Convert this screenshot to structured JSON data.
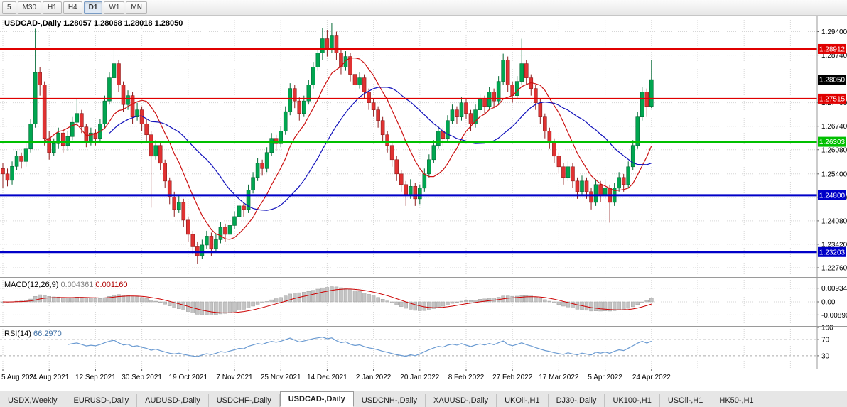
{
  "toolbar": {
    "timeframes": [
      "5",
      "M30",
      "H1",
      "H4",
      "D1",
      "W1",
      "MN"
    ],
    "active": "D1"
  },
  "tabs": {
    "items": [
      "USDX,Weekly",
      "EURUSD-,Daily",
      "AUDUSD-,Daily",
      "USDCHF-,Daily",
      "USDCAD-,Daily",
      "USDCNH-,Daily",
      "XAUUSD-,Daily",
      "UKOil-,H1",
      "DJ30-,Daily",
      "UK100-,H1",
      "USOil-,H1",
      "HK50-,H1"
    ],
    "active": "USDCAD-,Daily"
  },
  "chart_data": {
    "type": "candlestick",
    "title": "USDCAD-,Daily",
    "quote": {
      "open": "1.28057",
      "high": "1.28068",
      "low": "1.28018",
      "close": "1.28050"
    },
    "bid": "1.28050",
    "price_range": [
      1.225,
      1.2985
    ],
    "y_ticks": [
      "1.29400",
      "1.28740",
      "1.27400",
      "1.26740",
      "1.26080",
      "1.25400",
      "1.24740",
      "1.24080",
      "1.23420",
      "1.22760"
    ],
    "x_labels": [
      "5 Aug 2021",
      "24 Aug 2021",
      "12 Sep 2021",
      "30 Sep 2021",
      "19 Oct 2021",
      "7 Nov 2021",
      "25 Nov 2021",
      "14 Dec 2021",
      "2 Jan 2022",
      "20 Jan 2022",
      "8 Feb 2022",
      "27 Feb 2022",
      "17 Mar 2022",
      "5 Apr 2022",
      "24 Apr 2022"
    ],
    "levels": [
      {
        "value": 1.28912,
        "label": "1.28912",
        "color": "#e00000",
        "width": 2
      },
      {
        "value": 1.27515,
        "label": "1.27515",
        "color": "#e00000",
        "width": 2
      },
      {
        "value": 1.26303,
        "label": "1.26303",
        "color": "#00c000",
        "width": 3
      },
      {
        "value": 1.248,
        "label": "1.24800",
        "color": "#0000c8",
        "width": 3
      },
      {
        "value": 1.23203,
        "label": "1.23203",
        "color": "#0000c8",
        "width": 3
      }
    ],
    "moving_averages": [
      {
        "period": 10,
        "color": "#cc1111"
      },
      {
        "period": 24,
        "color": "#1111bb"
      }
    ],
    "indicators": {
      "macd": {
        "label": "MACD(12,26,9)",
        "main_value": "0.004361",
        "signal_value": "0.001160",
        "axis": [
          "0.009345",
          "0.00",
          "-0.008901"
        ],
        "range": [
          -0.016,
          0.016
        ]
      },
      "rsi": {
        "label": "RSI(14)",
        "value": "66.2970",
        "axis": [
          "100",
          "70",
          "30"
        ],
        "level_lines": [
          70,
          30
        ]
      }
    },
    "colors": {
      "up": "#00a650",
      "up_stroke": "#046a35",
      "down": "#e03232",
      "down_stroke": "#8e1c1c",
      "grid": "#d6d6d6",
      "macd_hist": "#c4c4c4",
      "macd_hist_stroke": "#9e9e9e",
      "macd_signal": "#cc0000",
      "rsi": "#6b9bd2",
      "rsi_value": "#3b6ea5"
    },
    "candles": [
      [
        1.2555,
        1.257,
        1.25,
        1.254
      ],
      [
        1.254,
        1.2555,
        1.2505,
        1.2522
      ],
      [
        1.2522,
        1.2575,
        1.251,
        1.2561
      ],
      [
        1.2561,
        1.2605,
        1.255,
        1.259
      ],
      [
        1.259,
        1.26,
        1.2555,
        1.2575
      ],
      [
        1.2575,
        1.2625,
        1.256,
        1.261
      ],
      [
        1.261,
        1.2695,
        1.26,
        1.268
      ],
      [
        1.268,
        1.2948,
        1.267,
        1.2825
      ],
      [
        1.2825,
        1.284,
        1.276,
        1.279
      ],
      [
        1.279,
        1.28,
        1.262,
        1.264
      ],
      [
        1.264,
        1.266,
        1.258,
        1.26
      ],
      [
        1.26,
        1.264,
        1.259,
        1.2625
      ],
      [
        1.2625,
        1.267,
        1.261,
        1.2655
      ],
      [
        1.2655,
        1.2665,
        1.26,
        1.262
      ],
      [
        1.262,
        1.266,
        1.2605,
        1.2645
      ],
      [
        1.2645,
        1.27,
        1.2635,
        1.2685
      ],
      [
        1.2685,
        1.275,
        1.2675,
        1.271
      ],
      [
        1.271,
        1.272,
        1.2655,
        1.2672
      ],
      [
        1.2672,
        1.268,
        1.2615,
        1.263
      ],
      [
        1.263,
        1.267,
        1.262,
        1.2655
      ],
      [
        1.2655,
        1.2665,
        1.262,
        1.264
      ],
      [
        1.264,
        1.2695,
        1.263,
        1.268
      ],
      [
        1.268,
        1.276,
        1.267,
        1.2745
      ],
      [
        1.2745,
        1.2825,
        1.2735,
        1.281
      ],
      [
        1.281,
        1.2895,
        1.279,
        1.285
      ],
      [
        1.285,
        1.286,
        1.277,
        1.279
      ],
      [
        1.279,
        1.28,
        1.2715,
        1.2735
      ],
      [
        1.2735,
        1.2775,
        1.272,
        1.276
      ],
      [
        1.276,
        1.277,
        1.268,
        1.27
      ],
      [
        1.27,
        1.274,
        1.269,
        1.272
      ],
      [
        1.272,
        1.273,
        1.266,
        1.268
      ],
      [
        1.268,
        1.2695,
        1.263,
        1.265
      ],
      [
        1.265,
        1.266,
        1.2445,
        1.259
      ],
      [
        1.259,
        1.2635,
        1.258,
        1.262
      ],
      [
        1.262,
        1.263,
        1.255,
        1.257
      ],
      [
        1.257,
        1.258,
        1.25,
        1.252
      ],
      [
        1.252,
        1.253,
        1.2455,
        1.2475
      ],
      [
        1.2475,
        1.249,
        1.242,
        1.244
      ],
      [
        1.244,
        1.248,
        1.243,
        1.246
      ],
      [
        1.246,
        1.247,
        1.239,
        1.241
      ],
      [
        1.241,
        1.242,
        1.235,
        1.237
      ],
      [
        1.237,
        1.238,
        1.2315,
        1.2335
      ],
      [
        1.2335,
        1.235,
        1.2288,
        1.231
      ],
      [
        1.231,
        1.2355,
        1.23,
        1.234
      ],
      [
        1.234,
        1.238,
        1.233,
        1.2365
      ],
      [
        1.2365,
        1.2375,
        1.231,
        1.233
      ],
      [
        1.233,
        1.237,
        1.232,
        1.2355
      ],
      [
        1.2355,
        1.2405,
        1.2345,
        1.239
      ],
      [
        1.239,
        1.24,
        1.235,
        1.237
      ],
      [
        1.237,
        1.241,
        1.236,
        1.2395
      ],
      [
        1.2395,
        1.2435,
        1.2385,
        1.242
      ],
      [
        1.242,
        1.2465,
        1.241,
        1.245
      ],
      [
        1.245,
        1.246,
        1.242,
        1.244
      ],
      [
        1.244,
        1.251,
        1.243,
        1.2495
      ],
      [
        1.2495,
        1.2545,
        1.2485,
        1.253
      ],
      [
        1.253,
        1.2585,
        1.252,
        1.257
      ],
      [
        1.257,
        1.258,
        1.2535,
        1.2555
      ],
      [
        1.2555,
        1.2615,
        1.2545,
        1.26
      ],
      [
        1.26,
        1.2655,
        1.259,
        1.264
      ],
      [
        1.264,
        1.265,
        1.2605,
        1.2625
      ],
      [
        1.2625,
        1.2675,
        1.2615,
        1.266
      ],
      [
        1.266,
        1.273,
        1.265,
        1.2715
      ],
      [
        1.2715,
        1.2795,
        1.2705,
        1.278
      ],
      [
        1.278,
        1.279,
        1.2725,
        1.2745
      ],
      [
        1.2745,
        1.2755,
        1.269,
        1.271
      ],
      [
        1.271,
        1.276,
        1.27,
        1.2745
      ],
      [
        1.2745,
        1.2805,
        1.2735,
        1.279
      ],
      [
        1.279,
        1.2855,
        1.278,
        1.284
      ],
      [
        1.284,
        1.2895,
        1.283,
        1.288
      ],
      [
        1.288,
        1.295,
        1.286,
        1.292
      ],
      [
        1.292,
        1.2945,
        1.287,
        1.289
      ],
      [
        1.289,
        1.2964,
        1.288,
        1.293
      ],
      [
        1.293,
        1.294,
        1.286,
        1.288
      ],
      [
        1.288,
        1.289,
        1.282,
        1.284
      ],
      [
        1.284,
        1.2885,
        1.283,
        1.287
      ],
      [
        1.287,
        1.288,
        1.28,
        1.282
      ],
      [
        1.282,
        1.283,
        1.277,
        1.279
      ],
      [
        1.279,
        1.2825,
        1.278,
        1.281
      ],
      [
        1.281,
        1.282,
        1.275,
        1.277
      ],
      [
        1.277,
        1.278,
        1.272,
        1.274
      ],
      [
        1.274,
        1.275,
        1.27,
        1.272
      ],
      [
        1.272,
        1.273,
        1.267,
        1.269
      ],
      [
        1.269,
        1.27,
        1.263,
        1.265
      ],
      [
        1.265,
        1.266,
        1.26,
        1.262
      ],
      [
        1.262,
        1.263,
        1.256,
        1.258
      ],
      [
        1.258,
        1.259,
        1.252,
        1.254
      ],
      [
        1.254,
        1.255,
        1.249,
        1.251
      ],
      [
        1.251,
        1.252,
        1.245,
        1.248
      ],
      [
        1.248,
        1.2525,
        1.247,
        1.2505
      ],
      [
        1.2505,
        1.2515,
        1.245,
        1.247
      ],
      [
        1.247,
        1.251,
        1.2455,
        1.25
      ],
      [
        1.25,
        1.2555,
        1.249,
        1.254
      ],
      [
        1.254,
        1.2595,
        1.253,
        1.258
      ],
      [
        1.258,
        1.2635,
        1.257,
        1.262
      ],
      [
        1.262,
        1.2675,
        1.261,
        1.266
      ],
      [
        1.266,
        1.267,
        1.262,
        1.264
      ],
      [
        1.264,
        1.2705,
        1.263,
        1.269
      ],
      [
        1.269,
        1.2735,
        1.268,
        1.272
      ],
      [
        1.272,
        1.273,
        1.268,
        1.27
      ],
      [
        1.27,
        1.2755,
        1.269,
        1.274
      ],
      [
        1.274,
        1.275,
        1.2695,
        1.271
      ],
      [
        1.271,
        1.272,
        1.266,
        1.268
      ],
      [
        1.268,
        1.2735,
        1.267,
        1.272
      ],
      [
        1.272,
        1.2765,
        1.271,
        1.275
      ],
      [
        1.275,
        1.276,
        1.271,
        1.273
      ],
      [
        1.273,
        1.2785,
        1.272,
        1.277
      ],
      [
        1.277,
        1.278,
        1.2725,
        1.2745
      ],
      [
        1.2745,
        1.2815,
        1.2735,
        1.28
      ],
      [
        1.28,
        1.2878,
        1.279,
        1.286
      ],
      [
        1.286,
        1.287,
        1.277,
        1.279
      ],
      [
        1.279,
        1.28,
        1.274,
        1.276
      ],
      [
        1.276,
        1.2815,
        1.275,
        1.28
      ],
      [
        1.28,
        1.292,
        1.279,
        1.285
      ],
      [
        1.285,
        1.286,
        1.279,
        1.281
      ],
      [
        1.281,
        1.282,
        1.276,
        1.278
      ],
      [
        1.278,
        1.279,
        1.272,
        1.274
      ],
      [
        1.274,
        1.275,
        1.268,
        1.27
      ],
      [
        1.27,
        1.271,
        1.264,
        1.266
      ],
      [
        1.266,
        1.267,
        1.261,
        1.263
      ],
      [
        1.263,
        1.264,
        1.257,
        1.259
      ],
      [
        1.259,
        1.26,
        1.254,
        1.256
      ],
      [
        1.256,
        1.257,
        1.251,
        1.253
      ],
      [
        1.253,
        1.2575,
        1.252,
        1.256
      ],
      [
        1.256,
        1.257,
        1.25,
        1.252
      ],
      [
        1.252,
        1.253,
        1.247,
        1.249
      ],
      [
        1.249,
        1.2535,
        1.248,
        1.252
      ],
      [
        1.252,
        1.253,
        1.247,
        1.249
      ],
      [
        1.249,
        1.25,
        1.244,
        1.246
      ],
      [
        1.246,
        1.2525,
        1.245,
        1.251
      ],
      [
        1.251,
        1.252,
        1.246,
        1.248
      ],
      [
        1.248,
        1.2525,
        1.247,
        1.25
      ],
      [
        1.25,
        1.251,
        1.2403,
        1.246
      ],
      [
        1.246,
        1.2515,
        1.245,
        1.25
      ],
      [
        1.25,
        1.2545,
        1.249,
        1.253
      ],
      [
        1.253,
        1.254,
        1.249,
        1.251
      ],
      [
        1.251,
        1.2575,
        1.25,
        1.256
      ],
      [
        1.256,
        1.2635,
        1.255,
        1.262
      ],
      [
        1.262,
        1.2715,
        1.261,
        1.27
      ],
      [
        1.27,
        1.2785,
        1.269,
        1.277
      ],
      [
        1.277,
        1.278,
        1.27,
        1.273
      ],
      [
        1.273,
        1.286,
        1.2725,
        1.2805
      ]
    ]
  }
}
